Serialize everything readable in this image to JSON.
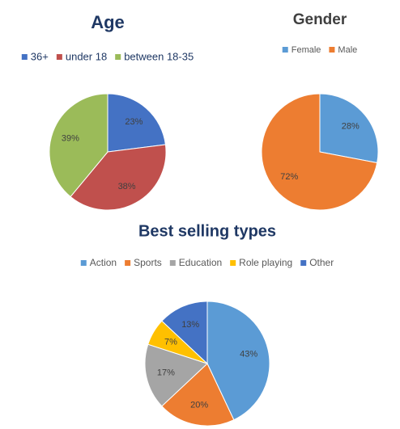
{
  "chart_data": [
    {
      "type": "pie",
      "title": "Age",
      "categories": [
        "36+",
        "under 18",
        "between 18-35"
      ],
      "values": [
        23,
        38,
        39
      ],
      "value_labels": [
        "23%",
        "38%",
        "39%"
      ],
      "colors": [
        "#4472c4",
        "#c0504d",
        "#9bbb59"
      ]
    },
    {
      "type": "pie",
      "title": "Gender",
      "categories": [
        "Female",
        "Male"
      ],
      "values": [
        28,
        72
      ],
      "value_labels": [
        "28%",
        "72%"
      ],
      "colors": [
        "#5b9bd5",
        "#ed7d31"
      ]
    },
    {
      "type": "pie",
      "title": "Best selling types",
      "categories": [
        "Action",
        "Sports",
        "Education",
        "Role playing",
        "Other"
      ],
      "values": [
        43,
        20,
        17,
        7,
        13
      ],
      "value_labels": [
        "43%",
        "20%",
        "17%",
        "7%",
        "13%"
      ],
      "colors": [
        "#5b9bd5",
        "#ed7d31",
        "#a5a5a5",
        "#ffc000",
        "#4472c4"
      ]
    }
  ]
}
